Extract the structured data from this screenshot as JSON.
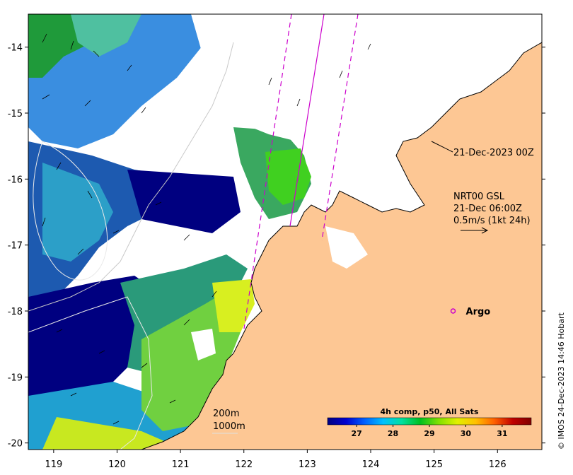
{
  "chart_data": {
    "type": "heatmap",
    "title": "",
    "x_ticks": [
      "119",
      "120",
      "121",
      "122",
      "123",
      "124",
      "125",
      "126"
    ],
    "x_values": [
      119,
      120,
      121,
      122,
      123,
      124,
      125,
      126
    ],
    "y_ticks": [
      "-14",
      "-15",
      "-16",
      "-17",
      "-18",
      "-19",
      "-20"
    ],
    "y_values": [
      -14,
      -15,
      -16,
      -17,
      -18,
      -19,
      -20
    ],
    "xlim": [
      118.6,
      126.7
    ],
    "ylim": [
      -20.1,
      -13.5
    ],
    "colorbar": {
      "title": "4h comp, p50, All Sats",
      "ticks": [
        "27",
        "28",
        "29",
        "30",
        "31"
      ],
      "tick_values": [
        27,
        28,
        29,
        30,
        31
      ],
      "range": [
        26.2,
        31.8
      ],
      "colors": [
        "#000080",
        "#0000d0",
        "#0060ff",
        "#00c0ff",
        "#00e0a0",
        "#00c020",
        "#80e000",
        "#e0f000",
        "#ffc000",
        "#ff6000",
        "#c00000",
        "#800000"
      ]
    },
    "land_color": "#fdc794",
    "track_color": "#cc00cc",
    "annotations": {
      "swath_time": "21-Dec-2023 00Z",
      "current_product": "NRT00 GSL",
      "current_time": "21-Dec 06:00Z",
      "current_scale": "0.5m/s (1kt 24h)",
      "argo_label": "Argo",
      "depth_200": "200m",
      "depth_1000": "1000m"
    },
    "argo_float": {
      "lon": 125.3,
      "lat": -18.0
    },
    "credit": "© IMOS 24-Dec-2023 14:46 Hobart"
  }
}
